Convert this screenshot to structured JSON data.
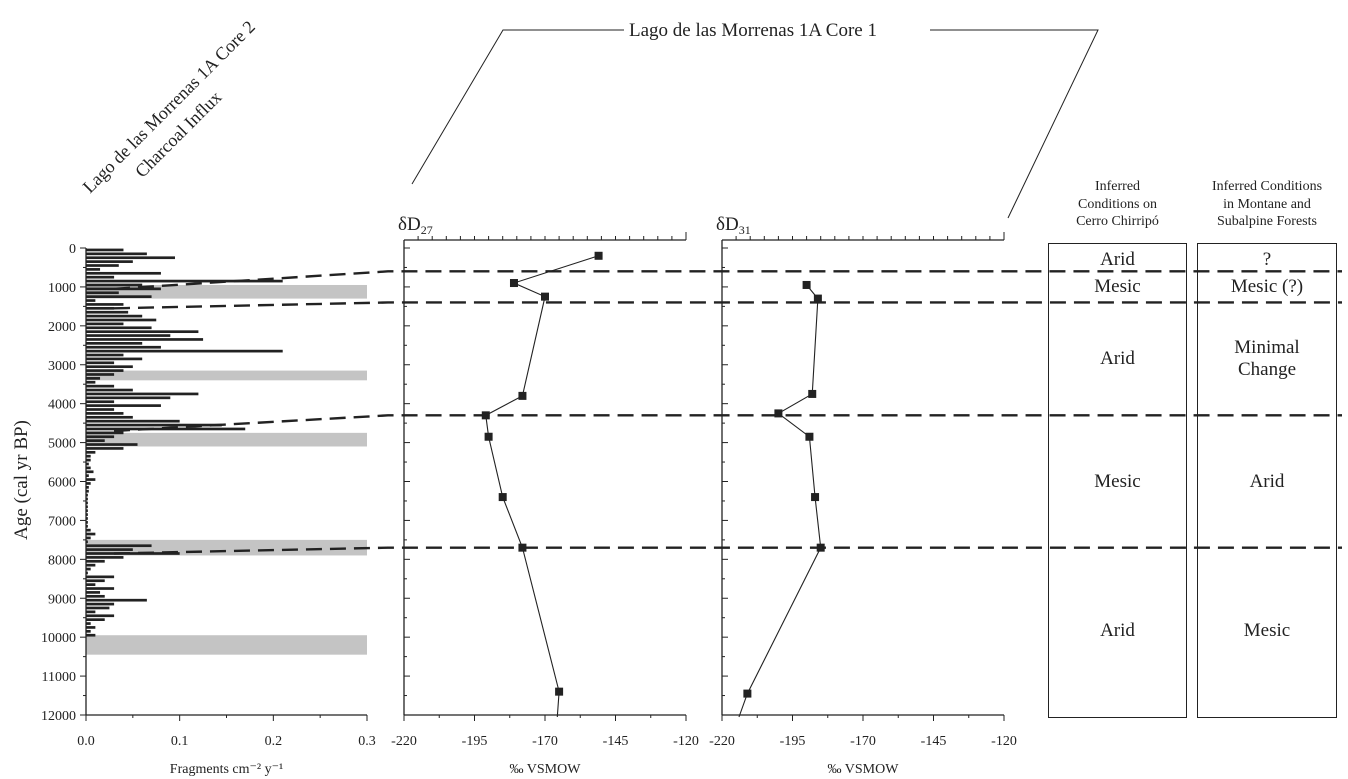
{
  "top_title": "Lago de las Morrenas 1A Core 1",
  "charcoal_title_line1": "Lago de las Morrenas 1A Core 2",
  "charcoal_title_line2": "Charcoal Influx",
  "y_axis_label": "Age (cal yr BP)",
  "chart_data": [
    {
      "type": "bar",
      "orientation": "horizontal",
      "title": "Lago de las Morrenas 1A Core 2 Charcoal Influx",
      "xlabel": "Fragments cm⁻² y⁻¹",
      "ylabel": "Age (cal yr BP)",
      "xlim": [
        0,
        0.3
      ],
      "ylim": [
        0,
        12000
      ],
      "x_ticks": [
        "0.0",
        "0.1",
        "0.2",
        "0.3"
      ],
      "y_ticks": [
        "0",
        "1000",
        "2000",
        "3000",
        "4000",
        "5000",
        "6000",
        "7000",
        "8000",
        "9000",
        "10000",
        "11000",
        "12000"
      ],
      "age": [
        0,
        100,
        200,
        300,
        400,
        500,
        600,
        700,
        800,
        900,
        1000,
        1100,
        1200,
        1300,
        1400,
        1500,
        1600,
        1700,
        1800,
        1900,
        2000,
        2100,
        2200,
        2300,
        2400,
        2500,
        2600,
        2700,
        2800,
        2900,
        3000,
        3100,
        3200,
        3300,
        3400,
        3500,
        3600,
        3700,
        3800,
        3900,
        4000,
        4100,
        4200,
        4300,
        4400,
        4500,
        4600,
        4700,
        4800,
        4900,
        5000,
        5100,
        5200,
        5300,
        5400,
        5500,
        5600,
        5700,
        5800,
        5900,
        6000,
        6100,
        6200,
        6300,
        6400,
        6500,
        6600,
        6700,
        6800,
        6900,
        7000,
        7100,
        7200,
        7300,
        7400,
        7500,
        7600,
        7700,
        7800,
        7900,
        8000,
        8100,
        8200,
        8300,
        8400,
        8500,
        8600,
        8700,
        8800,
        8900,
        9000,
        9100,
        9200,
        9300,
        9400,
        9500,
        9600,
        9700,
        9800,
        9900
      ],
      "influx": [
        0.04,
        0.065,
        0.095,
        0.05,
        0.035,
        0.015,
        0.08,
        0.03,
        0.21,
        0.06,
        0.08,
        0.035,
        0.07,
        0.01,
        0.04,
        0.03,
        0.045,
        0.06,
        0.075,
        0.04,
        0.07,
        0.12,
        0.09,
        0.125,
        0.06,
        0.08,
        0.21,
        0.04,
        0.06,
        0.03,
        0.05,
        0.04,
        0.03,
        0.015,
        0.01,
        0.03,
        0.05,
        0.12,
        0.09,
        0.03,
        0.08,
        0.03,
        0.04,
        0.05,
        0.1,
        0.145,
        0.17,
        0.04,
        0.03,
        0.02,
        0.055,
        0.04,
        0.01,
        0.005,
        0.005,
        0.003,
        0.005,
        0.008,
        0.003,
        0.01,
        0.005,
        0.003,
        0.003,
        0.002,
        0.002,
        0.002,
        0.002,
        0.002,
        0.002,
        0.002,
        0.002,
        0.002,
        0.005,
        0.01,
        0.005,
        0.002,
        0.07,
        0.05,
        0.1,
        0.04,
        0.02,
        0.01,
        0.005,
        0.002,
        0.03,
        0.02,
        0.01,
        0.03,
        0.015,
        0.02,
        0.065,
        0.03,
        0.025,
        0.01,
        0.03,
        0.02,
        0.005,
        0.01,
        0.005,
        0.01
      ],
      "shaded_bands_age": [
        [
          950,
          1300
        ],
        [
          3150,
          3400
        ],
        [
          4750,
          5100
        ],
        [
          7500,
          7900
        ],
        [
          9950,
          10450
        ]
      ]
    },
    {
      "type": "line",
      "title": "δD27",
      "xlabel": "‰ VSMOW",
      "xlim": [
        -220,
        -120
      ],
      "x_ticks": [
        "-220",
        "-195",
        "-170",
        "-145",
        "-120"
      ],
      "ylim": [
        0,
        12000
      ],
      "series": [
        {
          "x": [
            -151,
            -181,
            -170,
            -178,
            -191,
            -190,
            -185,
            -178,
            -165
          ],
          "y": [
            200,
            900,
            1250,
            3800,
            4300,
            4850,
            6400,
            7700,
            11400
          ]
        }
      ]
    },
    {
      "type": "line",
      "title": "δD31",
      "xlabel": "‰ VSMOW",
      "xlim": [
        -220,
        -120
      ],
      "x_ticks": [
        "-220",
        "-195",
        "-170",
        "-145",
        "-120"
      ],
      "ylim": [
        0,
        12000
      ],
      "series": [
        {
          "x": [
            -190,
            -186,
            -188,
            -200,
            -189,
            -187,
            -185,
            -211
          ],
          "y": [
            950,
            1300,
            3750,
            4250,
            4850,
            6400,
            7700,
            11450
          ]
        }
      ]
    }
  ],
  "dashed_boundaries_age": [
    600,
    1400,
    4300,
    7700
  ],
  "charcoal_dash_starts_age": [
    1050,
    1550,
    4700,
    7850
  ],
  "panels": [
    {
      "heading": [
        "Inferred",
        "Conditions on",
        "Cerro Chirripó"
      ],
      "zones": [
        {
          "text": [
            "Arid"
          ],
          "age": [
            0,
            600
          ]
        },
        {
          "text": [
            "Mesic"
          ],
          "age": [
            600,
            1400
          ]
        },
        {
          "text": [
            "Arid"
          ],
          "age": [
            1400,
            4300
          ]
        },
        {
          "text": [
            "Mesic"
          ],
          "age": [
            4300,
            7700
          ]
        },
        {
          "text": [
            "Arid"
          ],
          "age": [
            7700,
            12000
          ]
        }
      ]
    },
    {
      "heading": [
        "Inferred Conditions",
        "in Montane and",
        "Subalpine Forests"
      ],
      "zones": [
        {
          "text": [
            "?"
          ],
          "age": [
            0,
            600
          ]
        },
        {
          "text": [
            "Mesic (?)"
          ],
          "age": [
            600,
            1400
          ]
        },
        {
          "text": [
            "Minimal",
            "Change"
          ],
          "age": [
            1400,
            4300
          ]
        },
        {
          "text": [
            "Arid"
          ],
          "age": [
            4300,
            7700
          ]
        },
        {
          "text": [
            "Mesic"
          ],
          "age": [
            7700,
            12000
          ]
        }
      ]
    }
  ]
}
